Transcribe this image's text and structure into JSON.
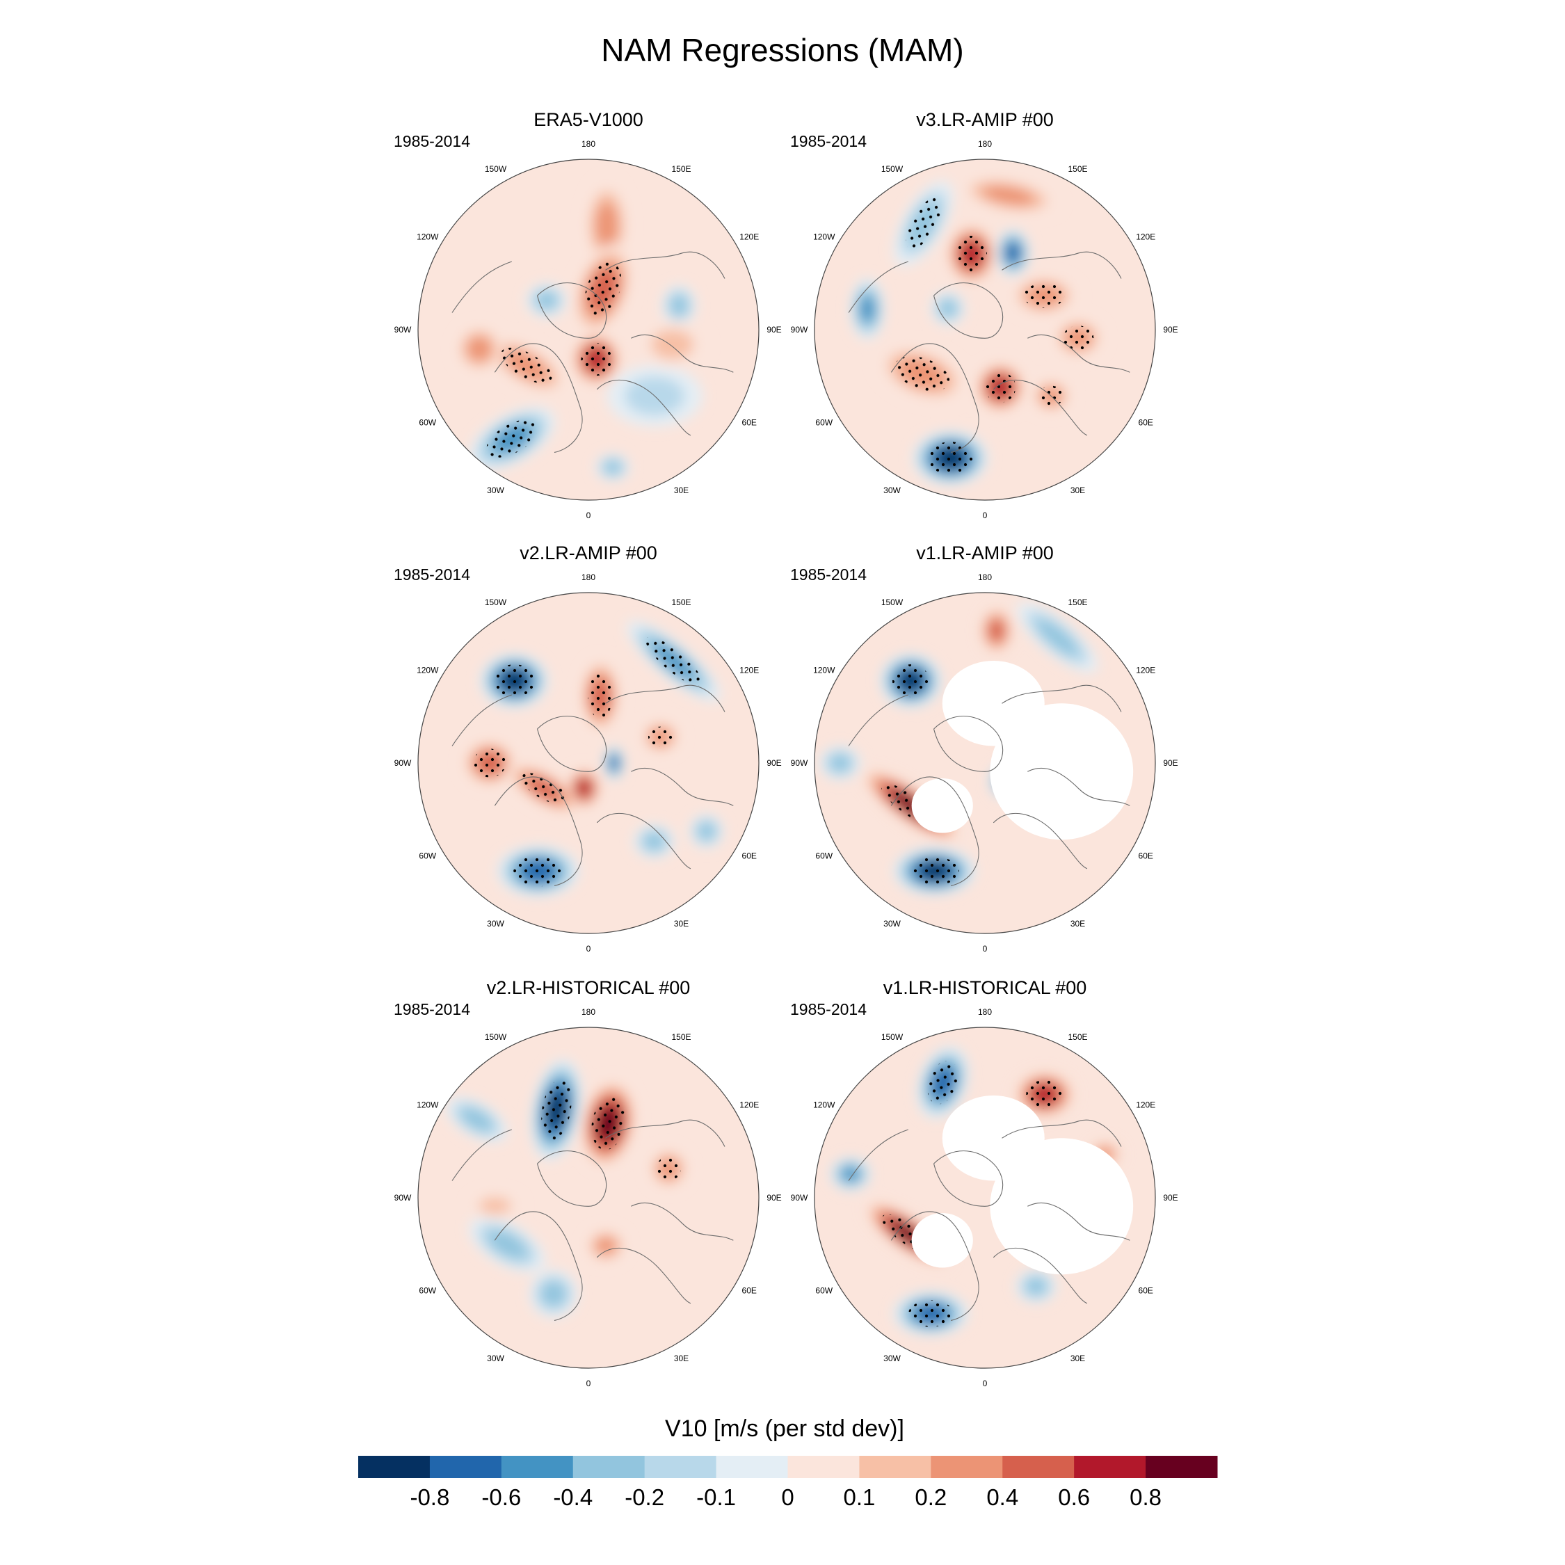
{
  "title": "NAM Regressions (MAM)",
  "longitude_labels": [
    "180",
    "150E",
    "120E",
    "90E",
    "60E",
    "30E",
    "0",
    "30W",
    "60W",
    "90W",
    "120W",
    "150W"
  ],
  "panels": [
    {
      "name": "ERA5-V1000",
      "period": "1985-2014",
      "masked_land": false
    },
    {
      "name": "v3.LR-AMIP  #00",
      "period": "1985-2014",
      "masked_land": false
    },
    {
      "name": "v2.LR-AMIP  #00",
      "period": "1985-2014",
      "masked_land": false
    },
    {
      "name": "v1.LR-AMIP  #00",
      "period": "1985-2014",
      "masked_land": true
    },
    {
      "name": "v2.LR-HISTORICAL  #00",
      "period": "1985-2014",
      "masked_land": false
    },
    {
      "name": "v1.LR-HISTORICAL  #00",
      "period": "1985-2014",
      "masked_land": true
    }
  ],
  "colorbar": {
    "title": "V10 [m/s (per std dev)]",
    "tick_labels": [
      "-0.8",
      "-0.6",
      "-0.4",
      "-0.2",
      "-0.1",
      "0",
      "0.1",
      "0.2",
      "0.4",
      "0.6",
      "0.8"
    ],
    "colors": [
      "#053061",
      "#2166ac",
      "#4393c3",
      "#92c5de",
      "#b8d8ea",
      "#e4eef5",
      "#fbe5dc",
      "#f7c0a6",
      "#ec9475",
      "#d6604d",
      "#b2182b",
      "#67001f"
    ]
  },
  "features": [
    [
      {
        "a": 170,
        "r": 0.62,
        "rx": 0.13,
        "ry": 0.27,
        "rot": 0,
        "l": 8
      },
      {
        "a": 105,
        "r": 0.55,
        "rx": 0.1,
        "ry": 0.12,
        "rot": 0,
        "l": 3
      },
      {
        "a": 160,
        "r": 0.25,
        "rx": 0.16,
        "ry": 0.28,
        "rot": 20,
        "l": 9,
        "dots": true
      },
      {
        "a": 15,
        "r": 0.18,
        "rx": 0.15,
        "ry": 0.16,
        "rot": 0,
        "l": 10,
        "dots": true
      },
      {
        "a": 300,
        "r": 0.42,
        "rx": 0.28,
        "ry": 0.12,
        "rot": 30,
        "l": 8,
        "dots": true
      },
      {
        "a": 325,
        "r": 0.78,
        "rx": 0.28,
        "ry": 0.14,
        "rot": -30,
        "l": 2,
        "dots": true
      },
      {
        "a": 280,
        "r": 0.65,
        "rx": 0.14,
        "ry": 0.14,
        "rot": 0,
        "l": 8
      },
      {
        "a": 235,
        "r": 0.3,
        "rx": 0.12,
        "ry": 0.1,
        "rot": 0,
        "l": 3
      },
      {
        "a": 45,
        "r": 0.55,
        "rx": 0.28,
        "ry": 0.18,
        "rot": 0,
        "l": 4
      },
      {
        "a": 80,
        "r": 0.5,
        "rx": 0.2,
        "ry": 0.14,
        "rot": 0,
        "l": 7
      },
      {
        "a": 10,
        "r": 0.82,
        "rx": 0.1,
        "ry": 0.08,
        "rot": 0,
        "l": 3
      }
    ],
    [
      {
        "a": 210,
        "r": 0.72,
        "rx": 0.12,
        "ry": 0.28,
        "rot": 30,
        "l": 3,
        "dots": true
      },
      {
        "a": 190,
        "r": 0.45,
        "rx": 0.15,
        "ry": 0.18,
        "rot": 0,
        "l": 10,
        "dots": true
      },
      {
        "a": 160,
        "r": 0.48,
        "rx": 0.1,
        "ry": 0.14,
        "rot": 0,
        "l": 1
      },
      {
        "a": 170,
        "r": 0.8,
        "rx": 0.3,
        "ry": 0.1,
        "rot": 10,
        "l": 8
      },
      {
        "a": 120,
        "r": 0.4,
        "rx": 0.2,
        "ry": 0.12,
        "rot": 0,
        "l": 8,
        "dots": true
      },
      {
        "a": 85,
        "r": 0.55,
        "rx": 0.15,
        "ry": 0.12,
        "rot": 0,
        "l": 8,
        "dots": true
      },
      {
        "a": 15,
        "r": 0.35,
        "rx": 0.15,
        "ry": 0.15,
        "rot": 0,
        "l": 10,
        "dots": true
      },
      {
        "a": 305,
        "r": 0.45,
        "rx": 0.28,
        "ry": 0.15,
        "rot": 20,
        "l": 8,
        "dots": true
      },
      {
        "a": 345,
        "r": 0.78,
        "rx": 0.22,
        "ry": 0.16,
        "rot": 0,
        "l": 0,
        "dots": true
      },
      {
        "a": 260,
        "r": 0.7,
        "rx": 0.1,
        "ry": 0.18,
        "rot": 0,
        "l": 2
      },
      {
        "a": 45,
        "r": 0.55,
        "rx": 0.12,
        "ry": 0.1,
        "rot": 0,
        "l": 8,
        "dots": true
      },
      {
        "a": 240,
        "r": 0.25,
        "rx": 0.1,
        "ry": 0.1,
        "rot": 0,
        "l": 3
      }
    ],
    [
      {
        "a": 222,
        "r": 0.65,
        "rx": 0.2,
        "ry": 0.16,
        "rot": 0,
        "l": 0,
        "dots": true
      },
      {
        "a": 170,
        "r": 0.4,
        "rx": 0.12,
        "ry": 0.22,
        "rot": 0,
        "l": 9,
        "dots": true
      },
      {
        "a": 140,
        "r": 0.78,
        "rx": 0.35,
        "ry": 0.1,
        "rot": 40,
        "l": 2,
        "dots": true
      },
      {
        "a": 270,
        "r": 0.58,
        "rx": 0.16,
        "ry": 0.14,
        "rot": 0,
        "l": 9,
        "dots": true
      },
      {
        "a": 300,
        "r": 0.3,
        "rx": 0.25,
        "ry": 0.1,
        "rot": 30,
        "l": 9,
        "dots": true
      },
      {
        "a": 335,
        "r": 0.7,
        "rx": 0.24,
        "ry": 0.15,
        "rot": 0,
        "l": 1,
        "dots": true
      },
      {
        "a": 350,
        "r": 0.15,
        "rx": 0.1,
        "ry": 0.12,
        "rot": 0,
        "l": 10
      },
      {
        "a": 90,
        "r": 0.15,
        "rx": 0.06,
        "ry": 0.1,
        "rot": 0,
        "l": 1
      },
      {
        "a": 110,
        "r": 0.45,
        "rx": 0.12,
        "ry": 0.1,
        "rot": 0,
        "l": 8,
        "dots": true
      },
      {
        "a": 40,
        "r": 0.6,
        "rx": 0.12,
        "ry": 0.1,
        "rot": 0,
        "l": 3
      },
      {
        "a": 60,
        "r": 0.8,
        "rx": 0.1,
        "ry": 0.1,
        "rot": 0,
        "l": 3
      }
    ],
    [
      {
        "a": 222,
        "r": 0.65,
        "rx": 0.18,
        "ry": 0.16,
        "rot": 0,
        "l": 0,
        "dots": true
      },
      {
        "a": 175,
        "r": 0.78,
        "rx": 0.1,
        "ry": 0.14,
        "rot": 0,
        "l": 9
      },
      {
        "a": 150,
        "r": 0.85,
        "rx": 0.3,
        "ry": 0.1,
        "rot": 40,
        "l": 3
      },
      {
        "a": 300,
        "r": 0.5,
        "rx": 0.35,
        "ry": 0.1,
        "rot": 35,
        "l": 11,
        "dots": true
      },
      {
        "a": 335,
        "r": 0.7,
        "rx": 0.24,
        "ry": 0.14,
        "rot": 0,
        "l": 0,
        "dots": true
      },
      {
        "a": 270,
        "r": 0.85,
        "rx": 0.12,
        "ry": 0.1,
        "rot": 0,
        "l": 3
      },
      {
        "a": 160,
        "r": 0.25,
        "rx": 0.1,
        "ry": 0.08,
        "rot": 0,
        "l": 11
      },
      {
        "a": 45,
        "r": 0.15,
        "rx": 0.08,
        "ry": 0.1,
        "rot": 0,
        "l": 2
      }
    ],
    [
      {
        "a": 200,
        "r": 0.55,
        "rx": 0.14,
        "ry": 0.3,
        "rot": 10,
        "l": 0,
        "dots": true
      },
      {
        "a": 165,
        "r": 0.45,
        "rx": 0.16,
        "ry": 0.26,
        "rot": 10,
        "l": 11,
        "dots": true
      },
      {
        "a": 235,
        "r": 0.8,
        "rx": 0.2,
        "ry": 0.1,
        "rot": 30,
        "l": 3
      },
      {
        "a": 110,
        "r": 0.5,
        "rx": 0.12,
        "ry": 0.12,
        "rot": 0,
        "l": 8,
        "dots": true
      },
      {
        "a": 300,
        "r": 0.55,
        "rx": 0.25,
        "ry": 0.12,
        "rot": 30,
        "l": 3
      },
      {
        "a": 340,
        "r": 0.6,
        "rx": 0.14,
        "ry": 0.14,
        "rot": 0,
        "l": 3
      },
      {
        "a": 20,
        "r": 0.3,
        "rx": 0.12,
        "ry": 0.1,
        "rot": 0,
        "l": 8
      },
      {
        "a": 275,
        "r": 0.55,
        "rx": 0.15,
        "ry": 0.08,
        "rot": 0,
        "l": 7
      }
    ],
    [
      {
        "a": 200,
        "r": 0.72,
        "rx": 0.14,
        "ry": 0.22,
        "rot": 20,
        "l": 1,
        "dots": true
      },
      {
        "a": 150,
        "r": 0.7,
        "rx": 0.18,
        "ry": 0.14,
        "rot": 0,
        "l": 10,
        "dots": true
      },
      {
        "a": 295,
        "r": 0.5,
        "rx": 0.3,
        "ry": 0.1,
        "rot": 35,
        "l": 11,
        "dots": true
      },
      {
        "a": 335,
        "r": 0.75,
        "rx": 0.22,
        "ry": 0.13,
        "rot": 0,
        "l": 1,
        "dots": true
      },
      {
        "a": 110,
        "r": 0.75,
        "rx": 0.1,
        "ry": 0.08,
        "rot": 0,
        "l": 8
      },
      {
        "a": 260,
        "r": 0.8,
        "rx": 0.12,
        "ry": 0.1,
        "rot": 0,
        "l": 2
      },
      {
        "a": 30,
        "r": 0.6,
        "rx": 0.12,
        "ry": 0.1,
        "rot": 0,
        "l": 3
      }
    ]
  ]
}
